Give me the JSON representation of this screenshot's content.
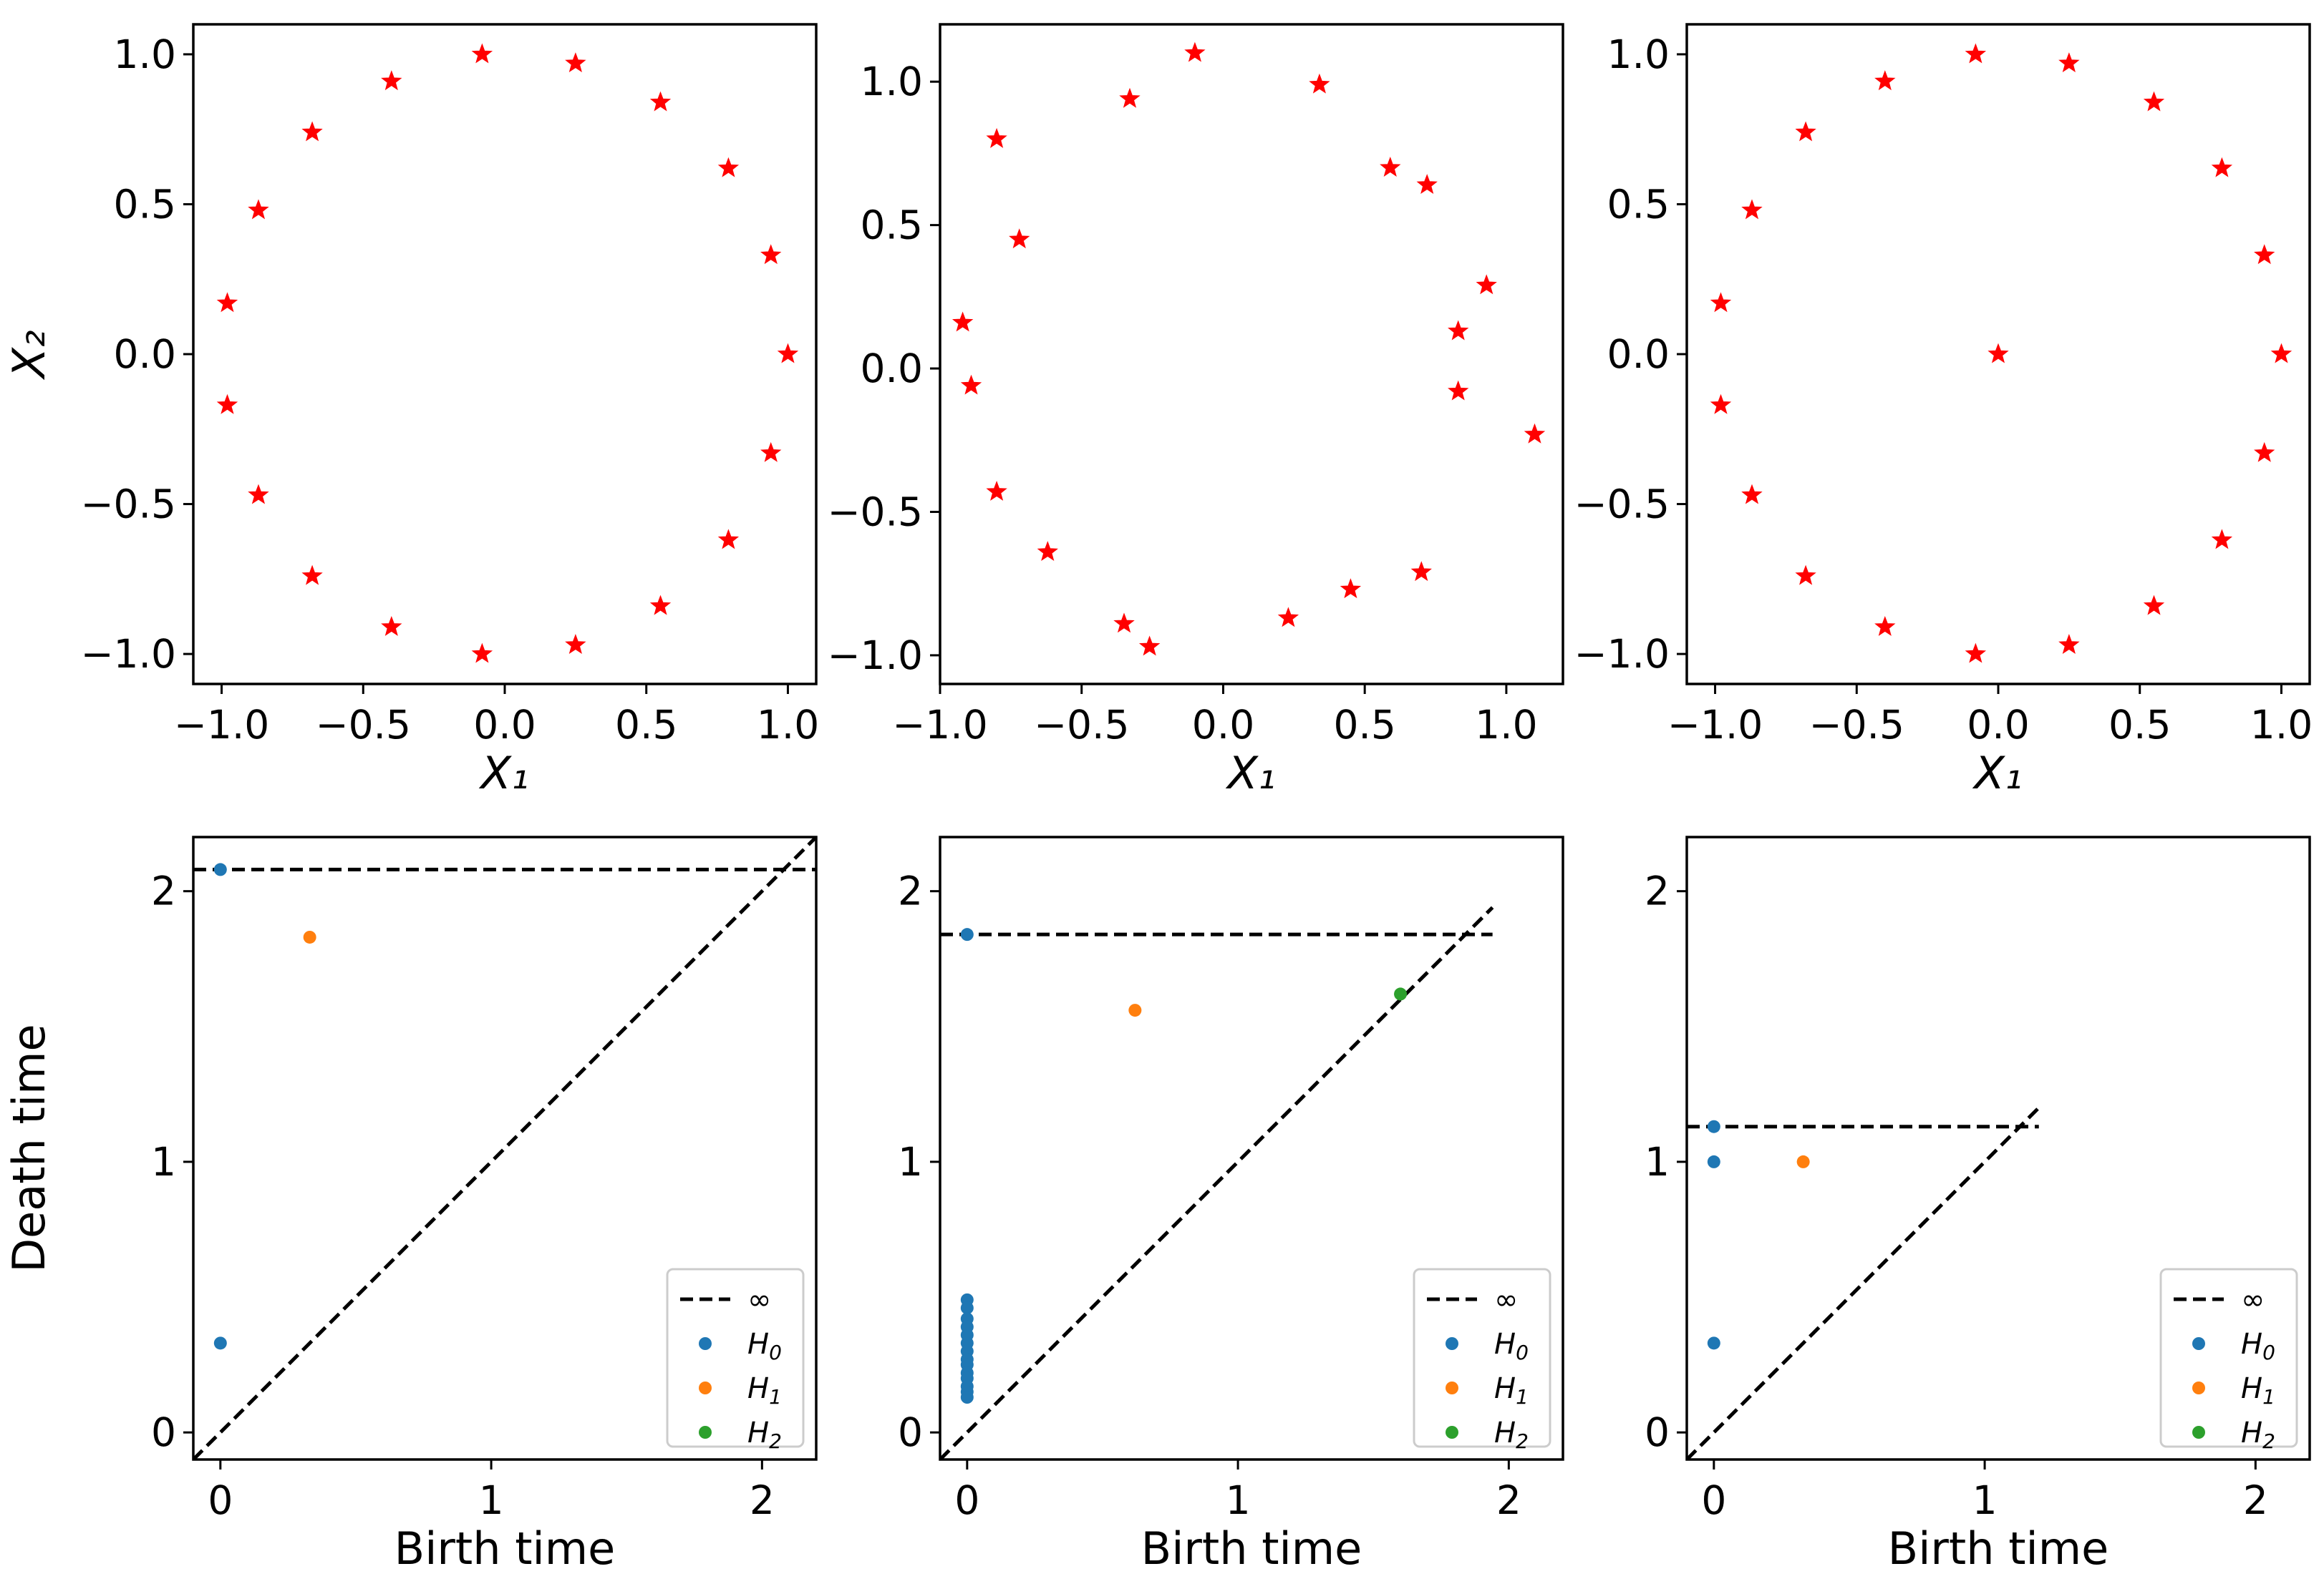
{
  "chart_data": [
    {
      "type": "scatter",
      "panel": "top-left",
      "xlabel": "X₁",
      "ylabel": "X₂",
      "xlim": [
        -1.1,
        1.1
      ],
      "ylim": [
        -1.1,
        1.1
      ],
      "xticks": [
        -1.0,
        -0.5,
        0.0,
        0.5,
        1.0
      ],
      "xtick_labels": [
        "−1.0",
        "−0.5",
        "0.0",
        "0.5",
        "1.0"
      ],
      "yticks": [
        1.0,
        0.5,
        0.0,
        -0.5,
        -1.0
      ],
      "ytick_labels": [
        "1.0",
        "0.5",
        "0.0",
        "−0.5",
        "−1.0"
      ],
      "marker": "star",
      "color": "#ff0000",
      "points": [
        [
          -0.08,
          1.0
        ],
        [
          0.25,
          0.97
        ],
        [
          0.55,
          0.84
        ],
        [
          0.79,
          0.62
        ],
        [
          0.94,
          0.33
        ],
        [
          1.0,
          0.0
        ],
        [
          0.94,
          -0.33
        ],
        [
          0.79,
          -0.62
        ],
        [
          0.55,
          -0.84
        ],
        [
          0.25,
          -0.97
        ],
        [
          -0.08,
          -1.0
        ],
        [
          -0.4,
          -0.91
        ],
        [
          -0.68,
          -0.74
        ],
        [
          -0.87,
          -0.47
        ],
        [
          -0.98,
          -0.17
        ],
        [
          -0.98,
          0.17
        ],
        [
          -0.87,
          0.48
        ],
        [
          -0.68,
          0.74
        ],
        [
          -0.4,
          0.91
        ]
      ]
    },
    {
      "type": "scatter",
      "panel": "top-middle",
      "xlabel": "X₁",
      "ylabel": "",
      "xlim": [
        -1.0,
        1.2
      ],
      "ylim": [
        -1.1,
        1.2
      ],
      "xticks": [
        -1.0,
        -0.5,
        0.0,
        0.5,
        1.0
      ],
      "xtick_labels": [
        "−1.0",
        "−0.5",
        "0.0",
        "0.5",
        "1.0"
      ],
      "yticks": [
        1.0,
        0.5,
        0.0,
        -0.5,
        -1.0
      ],
      "ytick_labels": [
        "1.0",
        "0.5",
        "0.0",
        "−0.5",
        "−1.0"
      ],
      "marker": "star",
      "color": "#ff0000",
      "points": [
        [
          -0.1,
          1.1
        ],
        [
          0.34,
          0.99
        ],
        [
          0.59,
          0.7
        ],
        [
          0.72,
          0.64
        ],
        [
          0.93,
          0.29
        ],
        [
          0.83,
          0.13
        ],
        [
          0.83,
          -0.08
        ],
        [
          1.1,
          -0.23
        ],
        [
          0.7,
          -0.71
        ],
        [
          0.45,
          -0.77
        ],
        [
          0.23,
          -0.87
        ],
        [
          -0.26,
          -0.97
        ],
        [
          -0.35,
          -0.89
        ],
        [
          -0.62,
          -0.64
        ],
        [
          -0.8,
          -0.43
        ],
        [
          -0.89,
          -0.06
        ],
        [
          -0.92,
          0.16
        ],
        [
          -0.72,
          0.45
        ],
        [
          -0.8,
          0.8
        ],
        [
          -0.33,
          0.94
        ]
      ]
    },
    {
      "type": "scatter",
      "panel": "top-right",
      "xlabel": "X₁",
      "ylabel": "",
      "xlim": [
        -1.1,
        1.1
      ],
      "ylim": [
        -1.1,
        1.1
      ],
      "xticks": [
        -1.0,
        -0.5,
        0.0,
        0.5,
        1.0
      ],
      "xtick_labels": [
        "−1.0",
        "−0.5",
        "0.0",
        "0.5",
        "1.0"
      ],
      "yticks": [
        1.0,
        0.5,
        0.0,
        -0.5,
        -1.0
      ],
      "ytick_labels": [
        "1.0",
        "0.5",
        "0.0",
        "−0.5",
        "−1.0"
      ],
      "marker": "star",
      "color": "#ff0000",
      "points": [
        [
          -0.08,
          1.0
        ],
        [
          0.25,
          0.97
        ],
        [
          0.55,
          0.84
        ],
        [
          0.79,
          0.62
        ],
        [
          0.94,
          0.33
        ],
        [
          1.0,
          0.0
        ],
        [
          0.94,
          -0.33
        ],
        [
          0.79,
          -0.62
        ],
        [
          0.55,
          -0.84
        ],
        [
          0.25,
          -0.97
        ],
        [
          -0.08,
          -1.0
        ],
        [
          -0.4,
          -0.91
        ],
        [
          -0.68,
          -0.74
        ],
        [
          -0.87,
          -0.47
        ],
        [
          -0.98,
          -0.17
        ],
        [
          -0.98,
          0.17
        ],
        [
          -0.87,
          0.48
        ],
        [
          -0.68,
          0.74
        ],
        [
          -0.4,
          0.91
        ],
        [
          0.0,
          0.0
        ]
      ]
    },
    {
      "type": "scatter",
      "subtype": "persistence-diagram",
      "panel": "bottom-left",
      "xlabel": "Birth time",
      "ylabel": "Death time",
      "xlim": [
        -0.1,
        2.2
      ],
      "ylim": [
        -0.1,
        2.2
      ],
      "xticks": [
        0,
        1,
        2
      ],
      "xtick_labels": [
        "0",
        "1",
        "2"
      ],
      "yticks": [
        2,
        1,
        0
      ],
      "ytick_labels": [
        "2",
        "1",
        "0"
      ],
      "diagonal": [
        [
          -0.1,
          -0.1
        ],
        [
          2.2,
          2.2
        ]
      ],
      "infinity_line": {
        "y": 2.08,
        "x_range": [
          -0.1,
          2.2
        ]
      },
      "series": [
        {
          "name": "H0",
          "points": [
            [
              0,
              2.08
            ],
            [
              0,
              0.33
            ]
          ]
        },
        {
          "name": "H1",
          "points": [
            [
              0.33,
              1.83
            ]
          ]
        },
        {
          "name": "H2",
          "points": []
        }
      ],
      "legend": {
        "position": "lower right",
        "entries": [
          "∞",
          "H0",
          "H1",
          "H2"
        ]
      }
    },
    {
      "type": "scatter",
      "subtype": "persistence-diagram",
      "panel": "bottom-middle",
      "xlabel": "Birth time",
      "ylabel": "",
      "xlim": [
        -0.1,
        2.2
      ],
      "ylim": [
        -0.1,
        2.2
      ],
      "xticks": [
        0,
        1,
        2
      ],
      "xtick_labels": [
        "0",
        "1",
        "2"
      ],
      "yticks": [
        2,
        1,
        0
      ],
      "ytick_labels": [
        "2",
        "1",
        "0"
      ],
      "diagonal": [
        [
          -0.1,
          -0.1
        ],
        [
          1.94,
          1.94
        ]
      ],
      "infinity_line": {
        "y": 1.84,
        "x_range": [
          -0.1,
          1.94
        ]
      },
      "series": [
        {
          "name": "H0",
          "points": [
            [
              0,
              1.84
            ],
            [
              0,
              0.49
            ],
            [
              0,
              0.46
            ],
            [
              0,
              0.42
            ],
            [
              0,
              0.39
            ],
            [
              0,
              0.36
            ],
            [
              0,
              0.33
            ],
            [
              0,
              0.3
            ],
            [
              0,
              0.27
            ],
            [
              0,
              0.25
            ],
            [
              0,
              0.22
            ],
            [
              0,
              0.2
            ],
            [
              0,
              0.17
            ],
            [
              0,
              0.15
            ],
            [
              0,
              0.13
            ]
          ]
        },
        {
          "name": "H1",
          "points": [
            [
              0.62,
              1.56
            ]
          ]
        },
        {
          "name": "H2",
          "points": [
            [
              1.6,
              1.62
            ]
          ]
        }
      ],
      "legend": {
        "position": "lower right",
        "entries": [
          "∞",
          "H0",
          "H1",
          "H2"
        ]
      }
    },
    {
      "type": "scatter",
      "subtype": "persistence-diagram",
      "panel": "bottom-right",
      "xlabel": "Birth time",
      "ylabel": "",
      "xlim": [
        -0.1,
        2.2
      ],
      "ylim": [
        -0.1,
        2.2
      ],
      "xticks": [
        0,
        1,
        2
      ],
      "xtick_labels": [
        "0",
        "1",
        "2"
      ],
      "yticks": [
        2,
        1,
        0
      ],
      "ytick_labels": [
        "2",
        "1",
        "0"
      ],
      "diagonal": [
        [
          -0.1,
          -0.1
        ],
        [
          1.2,
          1.2
        ]
      ],
      "infinity_line": {
        "y": 1.13,
        "x_range": [
          -0.1,
          1.2
        ]
      },
      "series": [
        {
          "name": "H0",
          "points": [
            [
              0,
              1.13
            ],
            [
              0,
              1.0
            ],
            [
              0,
              0.33
            ]
          ]
        },
        {
          "name": "H1",
          "points": [
            [
              0.33,
              1.0
            ]
          ]
        },
        {
          "name": "H2",
          "points": []
        }
      ],
      "legend": {
        "position": "lower right",
        "entries": [
          "∞",
          "H0",
          "H1",
          "H2"
        ]
      }
    }
  ],
  "colors": {
    "points": "#ff0000",
    "H0": "#1f77b4",
    "H1": "#ff7f0e",
    "H2": "#2ca02c",
    "lines": "#000000"
  }
}
